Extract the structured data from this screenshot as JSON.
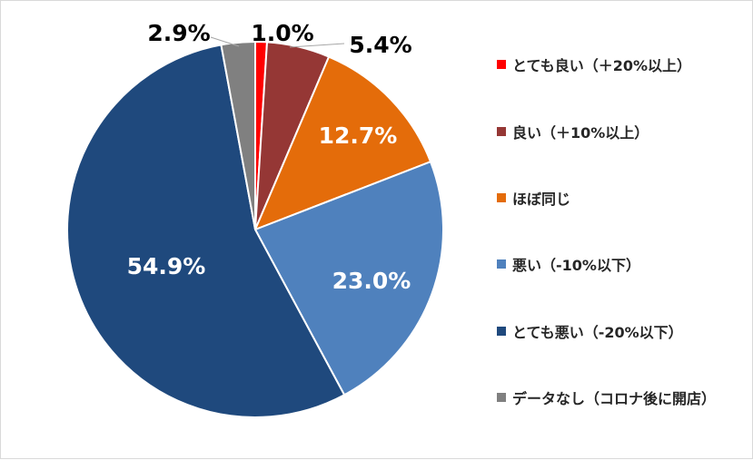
{
  "chart_data": {
    "type": "pie",
    "title": "",
    "categories": [
      "とても良い（＋20%以上）",
      "良い（＋10%以上）",
      "ほぼ同じ",
      "悪い（-10%以下）",
      "とても悪い（-20%以下）",
      "データなし（コロナ後に開店）"
    ],
    "values": [
      1.0,
      5.4,
      12.7,
      23.0,
      54.9,
      2.9
    ],
    "labels": [
      "1.0%",
      "5.4%",
      "12.7%",
      "23.0%",
      "54.9%",
      "2.9%"
    ],
    "colors": [
      "#ff0000",
      "#953735",
      "#e46c0a",
      "#4f81bd",
      "#1f497d",
      "#808080"
    ],
    "label_colors": [
      "#000000",
      "#000000",
      "#ffffff",
      "#ffffff",
      "#ffffff",
      "#000000"
    ],
    "legend_position": "right",
    "start_angle": "top",
    "direction": "clockwise"
  }
}
